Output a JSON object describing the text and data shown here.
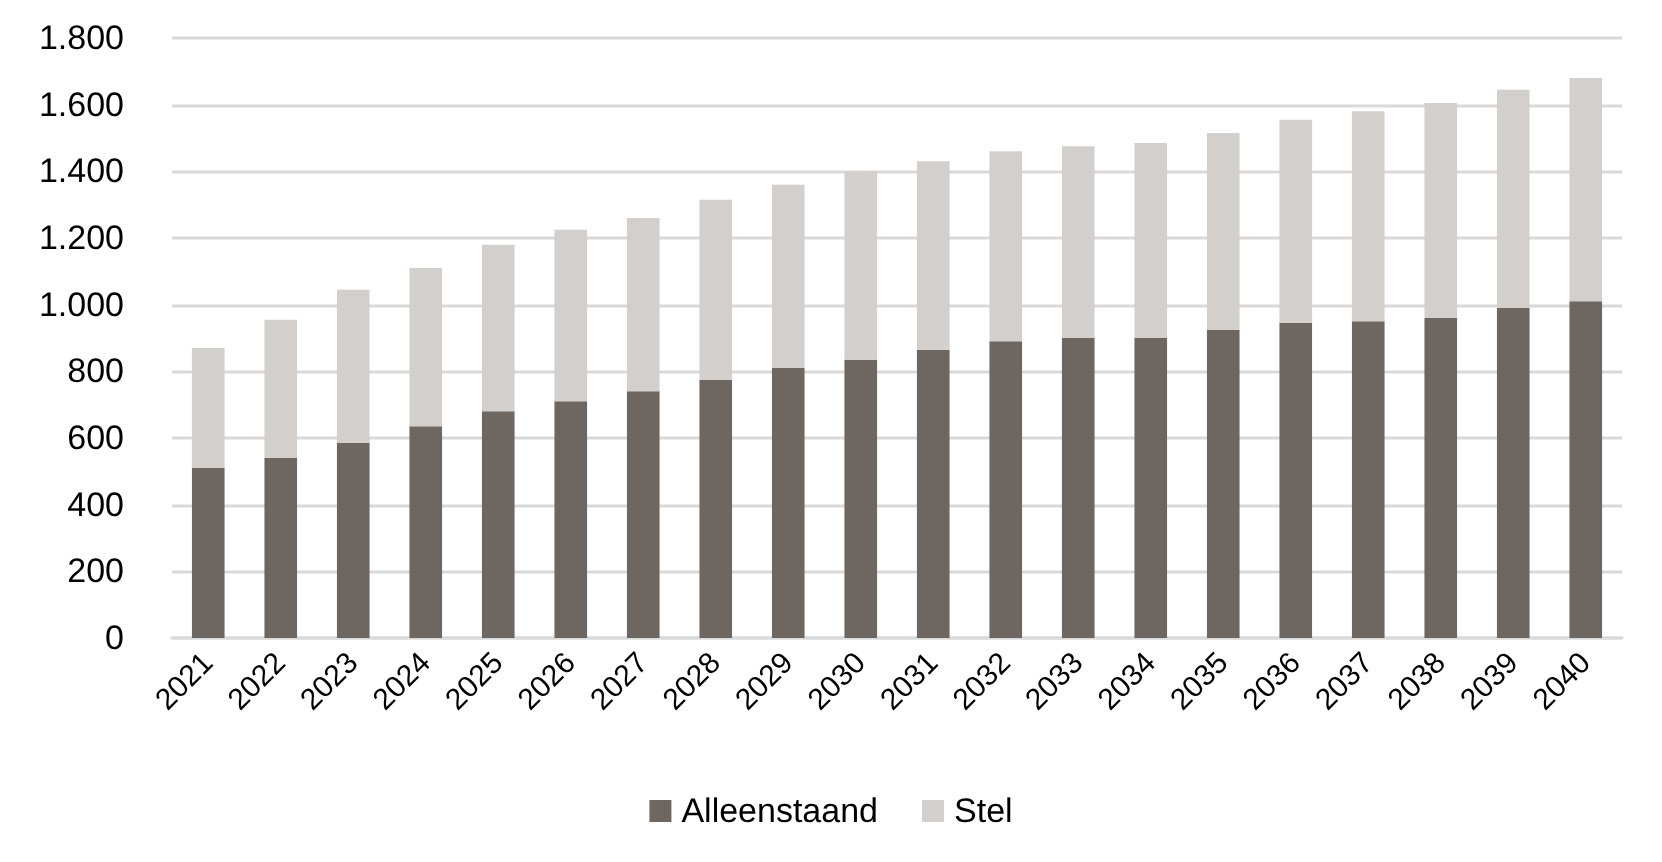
{
  "chart_data": {
    "type": "bar",
    "stacked": true,
    "categories": [
      "2021",
      "2022",
      "2023",
      "2024",
      "2025",
      "2026",
      "2027",
      "2028",
      "2029",
      "2030",
      "2031",
      "2032",
      "2033",
      "2034",
      "2035",
      "2036",
      "2037",
      "2038",
      "2039",
      "2040"
    ],
    "series": [
      {
        "name": "Alleenstaand",
        "color": "#6e6761",
        "values": [
          510,
          540,
          585,
          635,
          680,
          710,
          740,
          775,
          810,
          835,
          865,
          890,
          900,
          900,
          925,
          945,
          950,
          960,
          990,
          1010
        ]
      },
      {
        "name": "Stel",
        "color": "#d3cfcc",
        "values": [
          360,
          415,
          460,
          475,
          500,
          515,
          520,
          540,
          550,
          565,
          565,
          570,
          575,
          585,
          590,
          610,
          630,
          645,
          655,
          670
        ]
      }
    ],
    "ylim": [
      0,
      1800
    ],
    "yticks": [
      0,
      200,
      400,
      600,
      800,
      {
        "value": 1000,
        "label": "1.000"
      },
      {
        "value": 1200,
        "label": "1.200"
      },
      {
        "value": 1400,
        "label": "1.400"
      },
      {
        "value": 1600,
        "label": "1.600"
      },
      {
        "value": 1800,
        "label": "1.800"
      }
    ],
    "grid": "y",
    "legend": "bottom"
  }
}
